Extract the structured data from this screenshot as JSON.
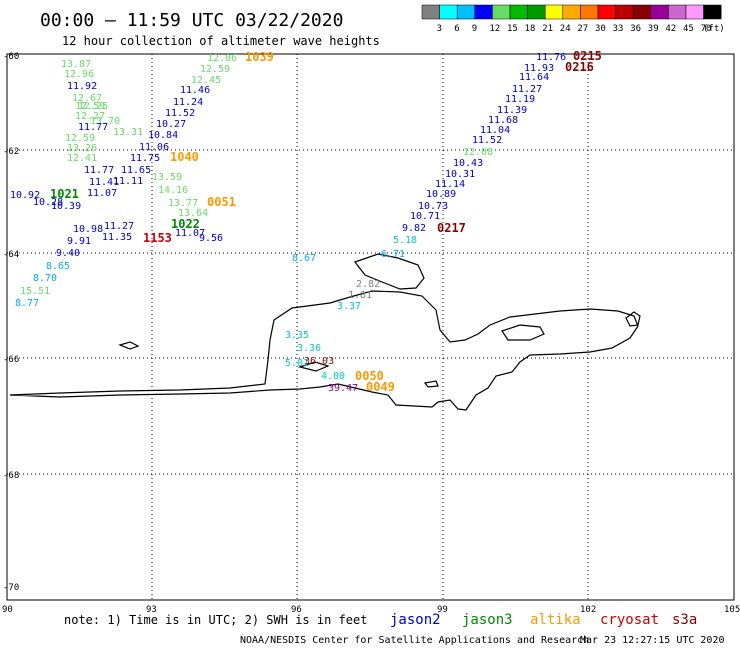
{
  "header": {
    "title": "00:00 – 11:59 UTC 03/22/2020",
    "subtitle": "12 hour collection of altimeter wave heights"
  },
  "legend": {
    "colors": [
      "#808080",
      "#00ffff",
      "#00bfff",
      "#0000ff",
      "#66dd66",
      "#00bb00",
      "#009900",
      "#ffff00",
      "#ffaa00",
      "#ff7700",
      "#ff0000",
      "#bb0000",
      "#880000",
      "#990099",
      "#cc66cc",
      "#ff99ff",
      "#000000"
    ],
    "labels": [
      "3",
      "6",
      "9",
      "12",
      "15",
      "18",
      "21",
      "24",
      "27",
      "30",
      "33",
      "36",
      "39",
      "42",
      "45",
      "70"
    ],
    "unit": "(ft)"
  },
  "axes": {
    "lat_labels": [
      "-60",
      "-62",
      "-64",
      "-66",
      "-68",
      "-70"
    ],
    "lon_labels": [
      "90",
      "93",
      "96",
      "99",
      "102",
      "105"
    ]
  },
  "footer": {
    "note": "note: 1) Time is in UTC; 2) SWH is in feet",
    "satellites": [
      {
        "name": "jason2",
        "color": "#0000cc"
      },
      {
        "name": "jason3",
        "color": "#008800"
      },
      {
        "name": "altika",
        "color": "#ff9900"
      },
      {
        "name": "cryosat",
        "color": "#cc0000"
      },
      {
        "name": "s3a",
        "color": "#880000"
      }
    ],
    "credit": "NOAA/NESDIS Center for Satellite Applications and Research",
    "timestamp": "Mar 23 12:27:15 UTC 2020"
  },
  "observations": [
    {
      "t": "12.86",
      "c": "#66dd66"
    },
    {
      "t": "12.59",
      "c": "#66dd66"
    },
    {
      "t": "12.45",
      "c": "#66dd66"
    },
    {
      "t": "11.46",
      "c": "#0000cc"
    },
    {
      "t": "11.24",
      "c": "#0000cc"
    },
    {
      "t": "11.52",
      "c": "#0000cc"
    },
    {
      "t": "10.27",
      "c": "#0000cc"
    },
    {
      "t": "10.84",
      "c": "#0000cc"
    },
    {
      "t": "11.06",
      "c": "#0000cc"
    },
    {
      "t": "11.75",
      "c": "#0000cc"
    },
    {
      "t": "11.65",
      "c": "#0000cc"
    },
    {
      "t": "11.11",
      "c": "#0000cc"
    },
    {
      "t": "13.87",
      "c": "#66dd66"
    },
    {
      "t": "12.96",
      "c": "#66dd66"
    },
    {
      "t": "11.92",
      "c": "#0000cc"
    },
    {
      "t": "12.67",
      "c": "#66dd66"
    },
    {
      "t": "12.59",
      "c": "#66dd66"
    },
    {
      "t": "12.25",
      "c": "#66dd66"
    },
    {
      "t": "12.27",
      "c": "#66dd66"
    },
    {
      "t": "13.70",
      "c": "#66dd66"
    },
    {
      "t": "11.77",
      "c": "#0000cc"
    },
    {
      "t": "13.31",
      "c": "#66dd66"
    },
    {
      "t": "12.59",
      "c": "#66dd66"
    },
    {
      "t": "13.26",
      "c": "#66dd66"
    },
    {
      "t": "12.41",
      "c": "#66dd66"
    },
    {
      "t": "11.77",
      "c": "#0000cc"
    },
    {
      "t": "11.41",
      "c": "#0000cc"
    },
    {
      "t": "13.59",
      "c": "#66dd66"
    },
    {
      "t": "14.16",
      "c": "#66dd66"
    },
    {
      "t": "13.77",
      "c": "#66dd66"
    },
    {
      "t": "13.64",
      "c": "#66dd66"
    },
    {
      "t": "10.92",
      "c": "#0000cc"
    },
    {
      "t": "10.28",
      "c": "#0000cc"
    },
    {
      "t": "10.39",
      "c": "#0000cc"
    },
    {
      "t": "11.07",
      "c": "#0000cc"
    },
    {
      "t": "10.98",
      "c": "#0000cc"
    },
    {
      "t": "11.27",
      "c": "#0000cc"
    },
    {
      "t": "9.91",
      "c": "#0000cc"
    },
    {
      "t": "11.35",
      "c": "#0000cc"
    },
    {
      "t": "11.07",
      "c": "#0000cc"
    },
    {
      "t": "9.56",
      "c": "#0000cc"
    },
    {
      "t": "9.40",
      "c": "#0000cc"
    },
    {
      "t": "8.65",
      "c": "#00aaff"
    },
    {
      "t": "8.70",
      "c": "#00aaff"
    },
    {
      "t": "15.51",
      "c": "#66dd66"
    },
    {
      "t": "8.77",
      "c": "#00aaff"
    },
    {
      "t": "8.67",
      "c": "#00aaff"
    },
    {
      "t": "6.71",
      "c": "#00aaff"
    },
    {
      "t": "2.82",
      "c": "#808080"
    },
    {
      "t": "1.81",
      "c": "#808080"
    },
    {
      "t": "3.37",
      "c": "#00cccc"
    },
    {
      "t": "3.35",
      "c": "#00cccc"
    },
    {
      "t": "3.36",
      "c": "#00cccc"
    },
    {
      "t": "5.81",
      "c": "#00cccc"
    },
    {
      "t": "36.03",
      "c": "#880000"
    },
    {
      "t": "4.00",
      "c": "#00cccc"
    },
    {
      "t": "39.47",
      "c": "#880088"
    },
    {
      "t": "11.76",
      "c": "#0000cc"
    },
    {
      "t": "11.93",
      "c": "#0000cc"
    },
    {
      "t": "11.64",
      "c": "#0000cc"
    },
    {
      "t": "11.27",
      "c": "#0000cc"
    },
    {
      "t": "11.19",
      "c": "#0000cc"
    },
    {
      "t": "11.39",
      "c": "#0000cc"
    },
    {
      "t": "11.68",
      "c": "#0000cc"
    },
    {
      "t": "11.04",
      "c": "#0000cc"
    },
    {
      "t": "11.52",
      "c": "#0000cc"
    },
    {
      "t": "12.08",
      "c": "#66dd66"
    },
    {
      "t": "10.43",
      "c": "#0000cc"
    },
    {
      "t": "10.31",
      "c": "#0000cc"
    },
    {
      "t": "11.14",
      "c": "#0000cc"
    },
    {
      "t": "10.89",
      "c": "#0000cc"
    },
    {
      "t": "10.73",
      "c": "#0000cc"
    },
    {
      "t": "10.71",
      "c": "#0000cc"
    },
    {
      "t": "9.82",
      "c": "#0000cc"
    },
    {
      "t": "5.18",
      "c": "#00cccc"
    }
  ],
  "time_labels": [
    {
      "t": "1039",
      "c": "#ff9900"
    },
    {
      "t": "1040",
      "c": "#ff9900"
    },
    {
      "t": "1021",
      "c": "#008800"
    },
    {
      "t": "0051",
      "c": "#ff9900"
    },
    {
      "t": "1022",
      "c": "#008800"
    },
    {
      "t": "1153",
      "c": "#cc0000"
    },
    {
      "t": "0217",
      "c": "#880000"
    },
    {
      "t": "0215",
      "c": "#880000"
    },
    {
      "t": "0216",
      "c": "#880000"
    },
    {
      "t": "0050",
      "c": "#ff9900"
    },
    {
      "t": "0049",
      "c": "#ff9900"
    }
  ]
}
